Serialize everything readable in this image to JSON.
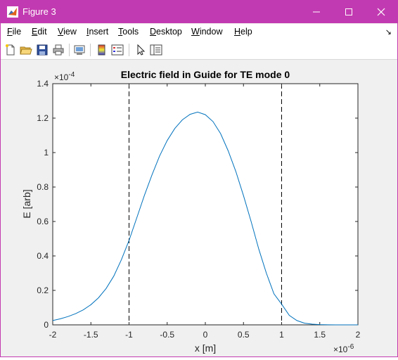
{
  "window": {
    "title": "Figure 3",
    "title_color": "#c23ab1"
  },
  "menu": {
    "items": [
      "File",
      "Edit",
      "View",
      "Insert",
      "Tools",
      "Desktop",
      "Window",
      "Help"
    ]
  },
  "toolbar": {
    "buttons": [
      "new-figure-icon",
      "open-file-icon",
      "save-icon",
      "print-icon",
      "link-plot-icon",
      "colorbar-icon",
      "legend-icon",
      "pointer-icon",
      "property-inspector-icon"
    ]
  },
  "chart_data": {
    "type": "line",
    "title": "Electric field in Guide for TE mode 0",
    "xlabel": "x [m]",
    "ylabel": "E [arb]",
    "x_multiplier": "×10",
    "x_exponent": "-6",
    "y_multiplier": "×10",
    "y_exponent": "-4",
    "xlim": [
      -2,
      2
    ],
    "ylim": [
      0,
      1.4
    ],
    "x_ticks": [
      "-2",
      "-1.5",
      "-1",
      "-0.5",
      "0",
      "0.5",
      "1",
      "1.5",
      "2"
    ],
    "y_ticks": [
      "0",
      "0.2",
      "0.4",
      "0.6",
      "0.8",
      "1",
      "1.2",
      "1.4"
    ],
    "x_tick_values": [
      -2,
      -1.5,
      -1,
      -0.5,
      0,
      0.5,
      1,
      1.5,
      2
    ],
    "y_tick_values": [
      0,
      0.2,
      0.4,
      0.6,
      0.8,
      1.0,
      1.2,
      1.4
    ],
    "guide_lines": [
      -1,
      1
    ],
    "line_color": "#0072bd",
    "series": [
      {
        "x": [
          -2.0,
          -1.9,
          -1.8,
          -1.7,
          -1.6,
          -1.5,
          -1.4,
          -1.3,
          -1.2,
          -1.1,
          -1.0,
          -0.9,
          -0.8,
          -0.7,
          -0.6,
          -0.5,
          -0.4,
          -0.3,
          -0.2,
          -0.1,
          0.0,
          0.1,
          0.2,
          0.3,
          0.4,
          0.5,
          0.6,
          0.7,
          0.8,
          0.9,
          1.0,
          1.1,
          1.2,
          1.3,
          1.4,
          1.5,
          1.6,
          1.7,
          1.8,
          1.9,
          2.0
        ],
        "y": [
          0.025,
          0.035,
          0.048,
          0.065,
          0.087,
          0.117,
          0.157,
          0.211,
          0.283,
          0.378,
          0.49,
          0.62,
          0.75,
          0.87,
          0.98,
          1.07,
          1.14,
          1.19,
          1.222,
          1.235,
          1.22,
          1.18,
          1.11,
          1.01,
          0.89,
          0.75,
          0.6,
          0.44,
          0.3,
          0.18,
          0.12,
          0.055,
          0.025,
          0.01,
          0.004,
          0.0015,
          0.0005,
          0.0002,
          0.0001,
          0.0,
          0.0
        ]
      }
    ],
    "grid": false
  }
}
